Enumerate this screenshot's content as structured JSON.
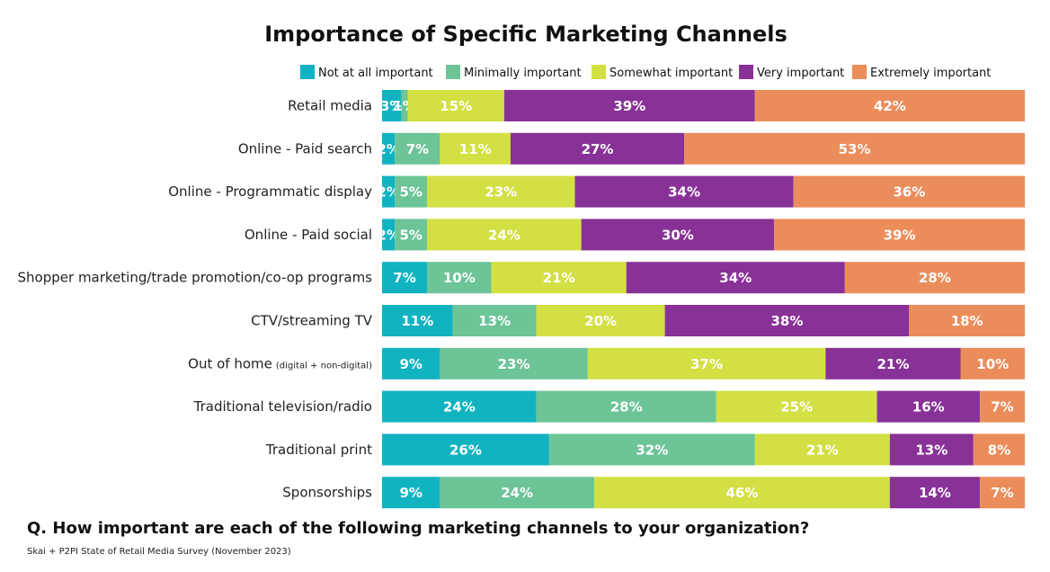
{
  "chart_data": {
    "type": "bar",
    "orientation": "horizontal",
    "stacked": true,
    "title": "Importance of Specific Marketing Channels",
    "legend_position": "top",
    "categories": [
      {
        "label": "Retail media",
        "note": ""
      },
      {
        "label": "Online - Paid search",
        "note": ""
      },
      {
        "label": "Online - Programmatic display",
        "note": ""
      },
      {
        "label": "Online - Paid social",
        "note": ""
      },
      {
        "label": "Shopper marketing/trade promotion/co-op programs",
        "note": ""
      },
      {
        "label": "CTV/streaming TV",
        "note": ""
      },
      {
        "label": "Out of home",
        "note": "(digital + non-digital)"
      },
      {
        "label": "Traditional television/radio",
        "note": ""
      },
      {
        "label": "Traditional print",
        "note": ""
      },
      {
        "label": "Sponsorships",
        "note": ""
      }
    ],
    "series": [
      {
        "name": "Not at all important",
        "color": "#12b3c1",
        "values": [
          3,
          2,
          2,
          2,
          7,
          11,
          9,
          24,
          26,
          9
        ]
      },
      {
        "name": "Minimally important",
        "color": "#6cc497",
        "values": [
          1,
          7,
          5,
          5,
          10,
          13,
          23,
          28,
          32,
          24
        ]
      },
      {
        "name": "Somewhat important",
        "color": "#d2e043",
        "values": [
          15,
          11,
          23,
          24,
          21,
          20,
          37,
          25,
          21,
          46
        ]
      },
      {
        "name": "Very important",
        "color": "#883298",
        "values": [
          39,
          27,
          34,
          30,
          34,
          38,
          21,
          16,
          13,
          14
        ]
      },
      {
        "name": "Extremely important",
        "color": "#eb8d5b",
        "values": [
          42,
          53,
          36,
          39,
          28,
          18,
          10,
          7,
          8,
          7
        ]
      }
    ],
    "value_suffix": "%"
  },
  "question": "Q. How important are each of the following marketing channels to your organization?",
  "source": "Skai + P2PI State of Retail Media Survey (November 2023)"
}
